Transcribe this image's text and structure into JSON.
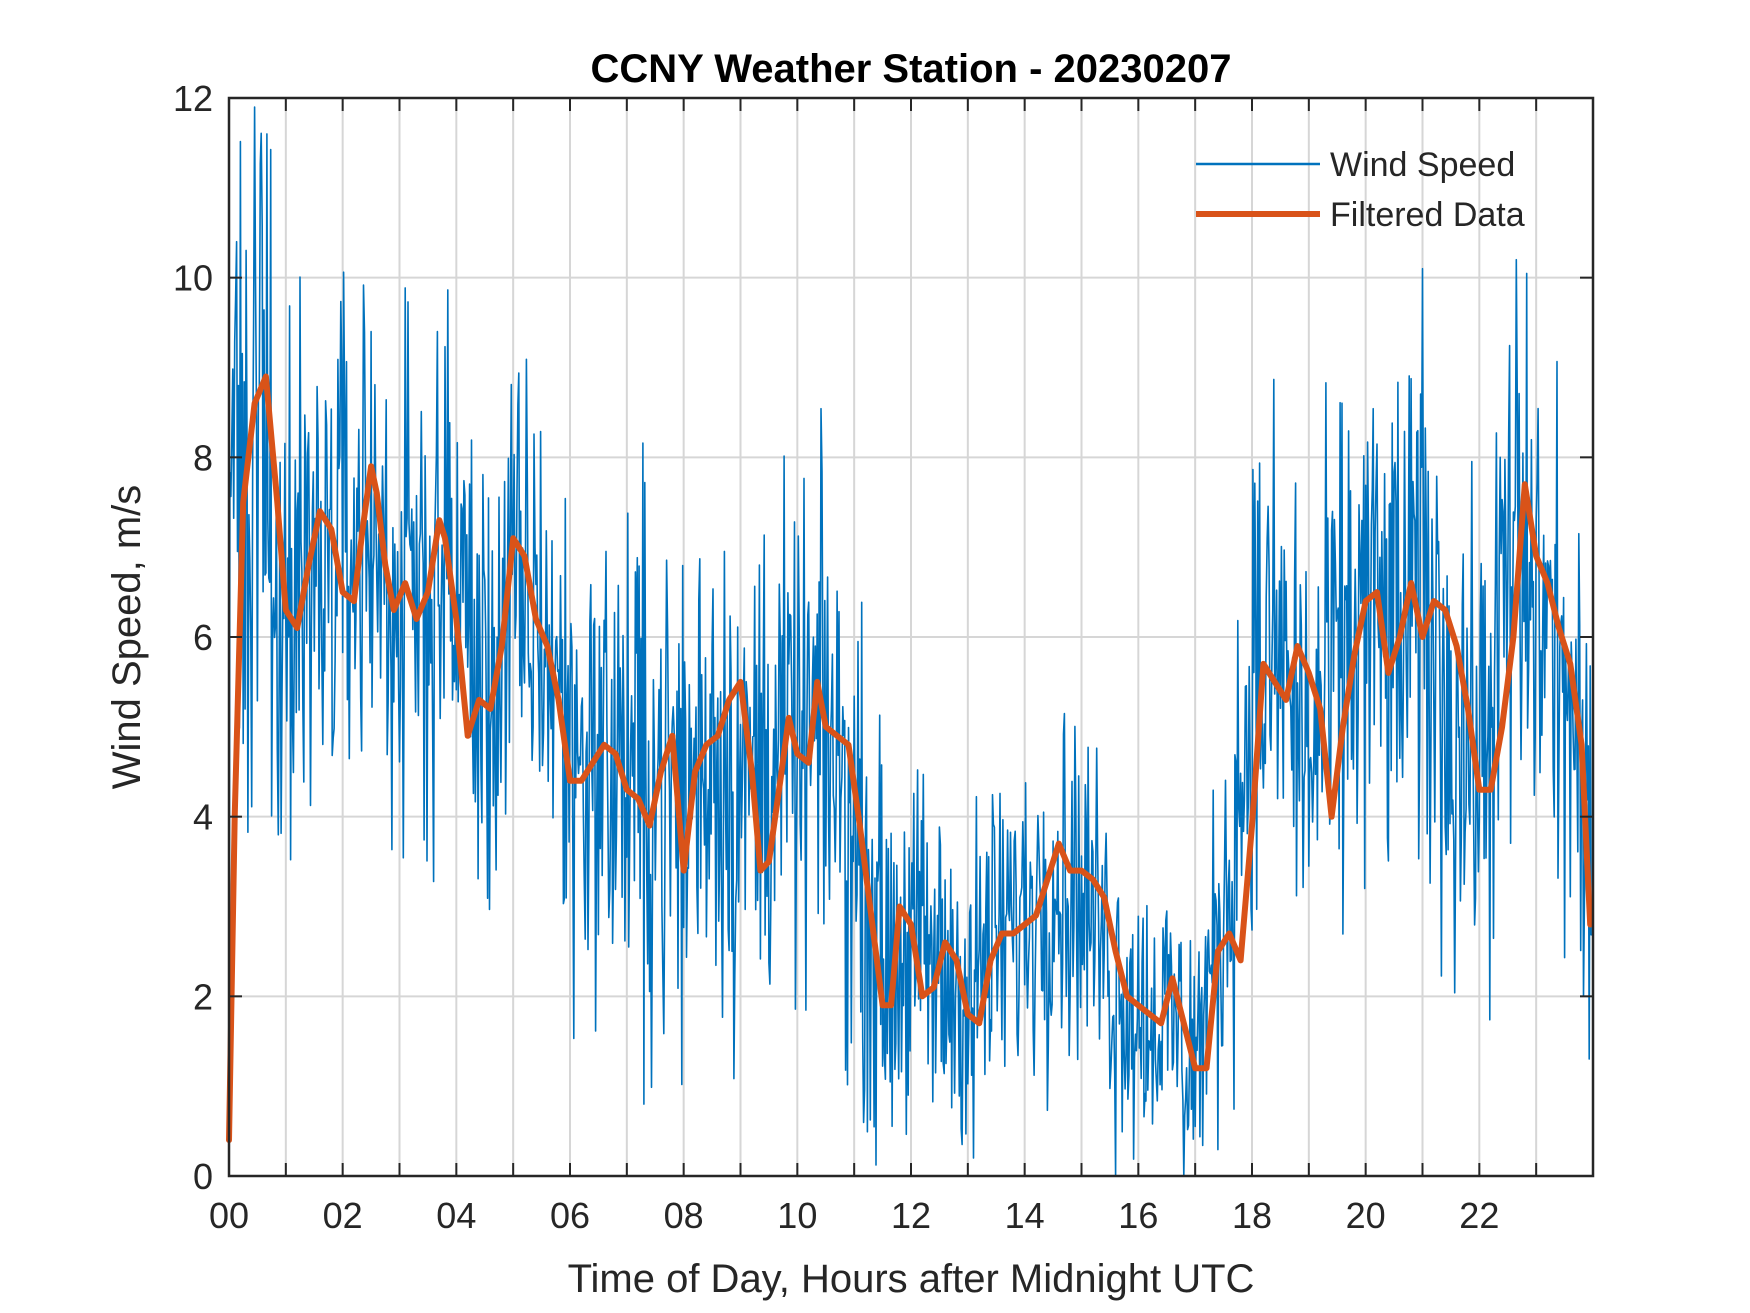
{
  "chart_data": {
    "type": "line",
    "title": "CCNY Weather Station - 20230207",
    "xlabel": "Time of Day, Hours after Midnight UTC",
    "ylabel": "Wind Speed, m/s",
    "xlim": [
      0,
      24
    ],
    "ylim": [
      0,
      12
    ],
    "xticks": [
      {
        "value": 0,
        "label": "00"
      },
      {
        "value": 2,
        "label": "02"
      },
      {
        "value": 4,
        "label": "04"
      },
      {
        "value": 6,
        "label": "06"
      },
      {
        "value": 8,
        "label": "08"
      },
      {
        "value": 10,
        "label": "10"
      },
      {
        "value": 12,
        "label": "12"
      },
      {
        "value": 14,
        "label": "14"
      },
      {
        "value": 16,
        "label": "16"
      },
      {
        "value": 18,
        "label": "18"
      },
      {
        "value": 20,
        "label": "20"
      },
      {
        "value": 22,
        "label": "22"
      }
    ],
    "x_minor_gridlines": [
      1,
      3,
      5,
      7,
      9,
      11,
      13,
      15,
      17,
      19,
      21,
      23
    ],
    "yticks": [
      {
        "value": 0,
        "label": "0"
      },
      {
        "value": 2,
        "label": "2"
      },
      {
        "value": 4,
        "label": "4"
      },
      {
        "value": 6,
        "label": "6"
      },
      {
        "value": 8,
        "label": "8"
      },
      {
        "value": 10,
        "label": "10"
      },
      {
        "value": 12,
        "label": "12"
      }
    ],
    "grid": true,
    "legend_position": "top-right",
    "series": [
      {
        "name": "Wind Speed",
        "color": "#0072BD",
        "style": "thin noisy line, approx. 1-minute samples (envelope given as mean and spread)",
        "x": [
          0.0,
          0.3,
          0.5,
          1.0,
          1.5,
          2.0,
          2.5,
          3.0,
          3.5,
          4.0,
          4.5,
          5.0,
          5.5,
          6.0,
          6.5,
          7.0,
          7.5,
          8.0,
          8.5,
          9.0,
          9.5,
          10.0,
          10.5,
          11.0,
          11.5,
          12.0,
          12.5,
          13.0,
          13.5,
          14.0,
          14.5,
          15.0,
          15.5,
          16.0,
          16.5,
          17.0,
          17.5,
          18.0,
          18.5,
          19.0,
          19.5,
          20.0,
          20.5,
          21.0,
          21.5,
          22.0,
          22.5,
          23.0,
          23.5,
          24.0
        ],
        "mean": [
          7.5,
          8.6,
          8.8,
          6.5,
          6.8,
          7.0,
          7.2,
          6.3,
          6.5,
          6.8,
          5.2,
          6.4,
          6.2,
          4.8,
          4.6,
          4.6,
          4.5,
          4.1,
          5.0,
          4.2,
          4.8,
          4.7,
          5.0,
          3.8,
          2.4,
          2.6,
          2.2,
          2.1,
          2.6,
          2.9,
          3.4,
          3.2,
          2.5,
          1.8,
          1.8,
          1.3,
          2.8,
          5.5,
          5.8,
          4.6,
          5.6,
          6.3,
          6.0,
          6.4,
          5.2,
          4.5,
          6.5,
          6.5,
          5.5,
          3.0
        ],
        "spread": [
          2.5,
          2.5,
          2.3,
          1.6,
          1.4,
          1.4,
          1.4,
          1.4,
          1.4,
          1.4,
          1.3,
          1.3,
          1.3,
          1.4,
          1.3,
          1.4,
          1.6,
          1.4,
          1.5,
          1.4,
          1.4,
          1.3,
          1.3,
          1.3,
          1.1,
          1.0,
          1.0,
          0.9,
          0.9,
          0.9,
          1.0,
          0.9,
          0.9,
          0.8,
          0.8,
          0.8,
          1.0,
          1.3,
          1.3,
          1.3,
          1.4,
          1.5,
          1.4,
          1.5,
          1.4,
          1.3,
          1.6,
          1.5,
          1.3,
          1.2
        ],
        "peaks": [
          {
            "x": 0.67,
            "y": 11.6
          },
          {
            "x": 2.5,
            "y": 9.4
          },
          {
            "x": 3.67,
            "y": 9.4
          },
          {
            "x": 7.3,
            "y": 8.8
          },
          {
            "x": 21.0,
            "y": 10.1
          },
          {
            "x": 22.65,
            "y": 10.2
          }
        ],
        "troughs": [
          {
            "x": 7.3,
            "y": 0.8
          },
          {
            "x": 13.1,
            "y": 0.2
          },
          {
            "x": 15.6,
            "y": 0.0
          },
          {
            "x": 16.8,
            "y": 0.0
          }
        ]
      },
      {
        "name": "Filtered Data",
        "color": "#D95319",
        "style": "thick smoothed line",
        "x": [
          0.0,
          0.1,
          0.25,
          0.45,
          0.65,
          0.85,
          1.0,
          1.2,
          1.4,
          1.6,
          1.8,
          2.0,
          2.2,
          2.35,
          2.5,
          2.6,
          2.75,
          2.9,
          3.1,
          3.3,
          3.5,
          3.7,
          3.8,
          4.0,
          4.2,
          4.4,
          4.6,
          4.8,
          5.0,
          5.2,
          5.4,
          5.6,
          5.8,
          6.0,
          6.2,
          6.4,
          6.6,
          6.8,
          7.0,
          7.2,
          7.4,
          7.6,
          7.8,
          8.0,
          8.2,
          8.4,
          8.6,
          8.8,
          9.0,
          9.2,
          9.35,
          9.5,
          9.7,
          9.85,
          10.0,
          10.2,
          10.35,
          10.5,
          10.7,
          10.9,
          11.1,
          11.3,
          11.5,
          11.65,
          11.8,
          12.0,
          12.2,
          12.4,
          12.6,
          12.8,
          13.0,
          13.2,
          13.4,
          13.6,
          13.8,
          14.0,
          14.2,
          14.4,
          14.6,
          14.8,
          15.0,
          15.2,
          15.4,
          15.6,
          15.8,
          16.0,
          16.2,
          16.4,
          16.6,
          16.8,
          17.0,
          17.2,
          17.4,
          17.6,
          17.8,
          18.0,
          18.2,
          18.4,
          18.6,
          18.8,
          19.0,
          19.2,
          19.4,
          19.6,
          19.8,
          20.0,
          20.2,
          20.4,
          20.6,
          20.8,
          21.0,
          21.2,
          21.4,
          21.6,
          21.8,
          22.0,
          22.2,
          22.4,
          22.6,
          22.8,
          23.0,
          23.2,
          23.4,
          23.6,
          23.8,
          23.95
        ],
        "y": [
          0.4,
          4.0,
          7.5,
          8.6,
          8.9,
          7.5,
          6.3,
          6.1,
          6.8,
          7.4,
          7.2,
          6.5,
          6.4,
          7.2,
          7.9,
          7.6,
          6.8,
          6.3,
          6.6,
          6.2,
          6.5,
          7.3,
          7.1,
          6.2,
          4.9,
          5.3,
          5.2,
          5.9,
          7.1,
          6.9,
          6.2,
          5.9,
          5.3,
          4.4,
          4.4,
          4.6,
          4.8,
          4.7,
          4.3,
          4.2,
          3.9,
          4.5,
          4.9,
          3.4,
          4.5,
          4.8,
          4.9,
          5.3,
          5.5,
          4.5,
          3.4,
          3.5,
          4.4,
          5.1,
          4.7,
          4.6,
          5.5,
          5.0,
          4.9,
          4.8,
          3.9,
          2.9,
          1.9,
          1.9,
          3.0,
          2.8,
          2.0,
          2.1,
          2.6,
          2.4,
          1.8,
          1.7,
          2.4,
          2.7,
          2.7,
          2.8,
          2.9,
          3.3,
          3.7,
          3.4,
          3.4,
          3.3,
          3.1,
          2.5,
          2.0,
          1.9,
          1.8,
          1.7,
          2.2,
          1.7,
          1.2,
          1.2,
          2.5,
          2.7,
          2.4,
          3.9,
          5.7,
          5.5,
          5.3,
          5.9,
          5.6,
          5.2,
          4.0,
          5.0,
          5.8,
          6.4,
          6.5,
          5.6,
          6.0,
          6.6,
          6.0,
          6.4,
          6.3,
          5.9,
          5.2,
          4.3,
          4.3,
          5.0,
          6.0,
          7.7,
          6.9,
          6.6,
          6.1,
          5.7,
          4.8,
          2.8
        ]
      }
    ]
  }
}
